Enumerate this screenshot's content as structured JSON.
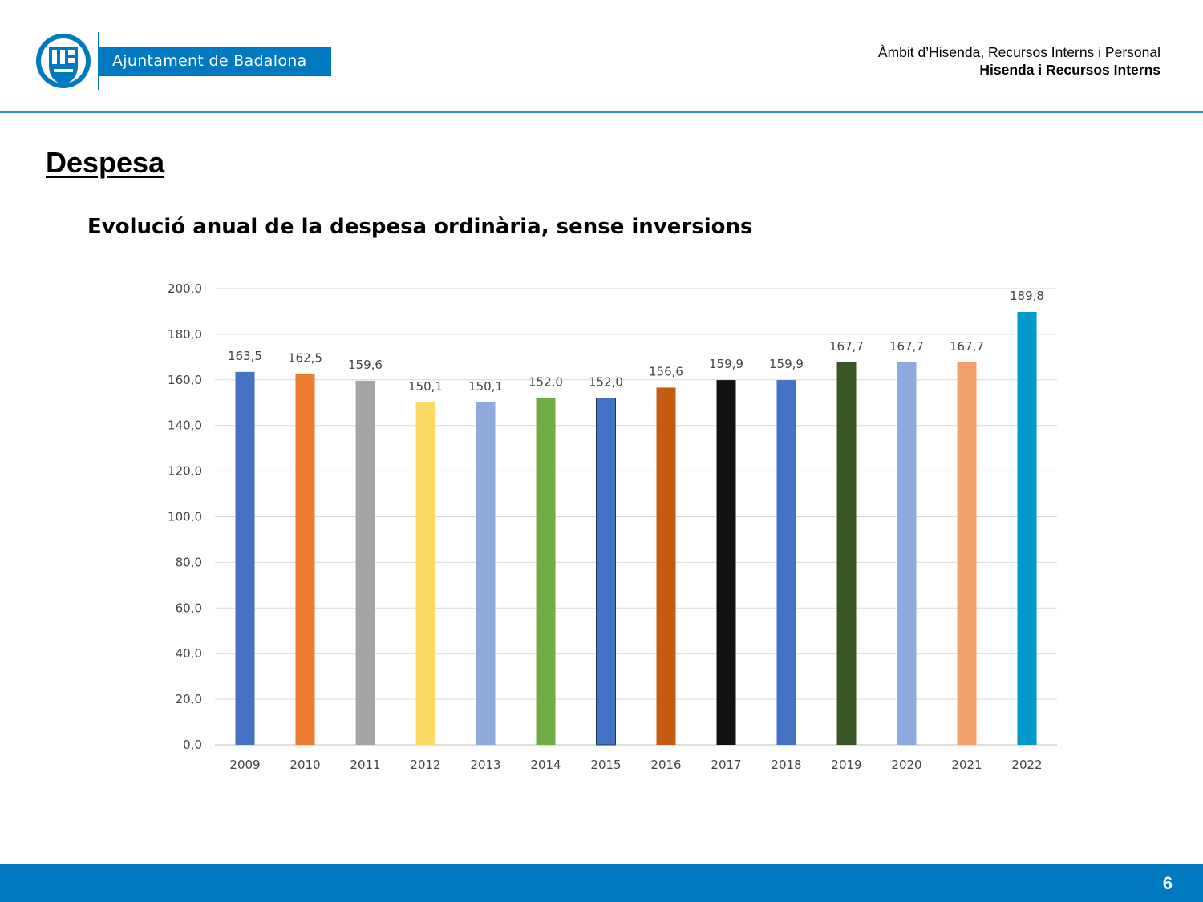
{
  "header": {
    "org_name": "Ajuntament de Badalona",
    "dept_line1": "Àmbit d’Hisenda, Recursos Interns i Personal",
    "dept_line2": "Hisenda i Recursos Interns",
    "brand_color": "#0079c1",
    "logo_icon": "city-seal-icon"
  },
  "section_title": "Despesa",
  "chart_data": {
    "type": "bar",
    "title": "Evolució anual de la despesa ordinària, sense inversions",
    "xlabel": "",
    "ylabel": "",
    "categories": [
      "2009",
      "2010",
      "2011",
      "2012",
      "2013",
      "2014",
      "2015",
      "2016",
      "2017",
      "2018",
      "2019",
      "2020",
      "2021",
      "2022"
    ],
    "values": [
      163.5,
      162.5,
      159.6,
      150.1,
      150.1,
      152.0,
      152.0,
      156.6,
      159.9,
      159.9,
      167.7,
      167.7,
      167.7,
      189.8
    ],
    "value_labels": [
      "163,5",
      "162,5",
      "159,6",
      "150,1",
      "150,1",
      "152,0",
      "152,0",
      "156,6",
      "159,9",
      "159,9",
      "167,7",
      "167,7",
      "167,7",
      "189,8"
    ],
    "colors": [
      "#4472c4",
      "#ed7d31",
      "#a5a5a5",
      "#ffd966",
      "#8faadc",
      "#70ad47",
      "#4472c4",
      "#c55a11",
      "#111111",
      "#4472c4",
      "#375623",
      "#8faadc",
      "#f4a26b",
      "#0099cc"
    ],
    "ylim": [
      0,
      200
    ],
    "yticks": [
      "0,0",
      "20,0",
      "40,0",
      "60,0",
      "80,0",
      "100,0",
      "120,0",
      "140,0",
      "160,0",
      "180,0",
      "200,0"
    ],
    "grid": true,
    "legend": false
  },
  "footer": {
    "page_number": "6"
  }
}
